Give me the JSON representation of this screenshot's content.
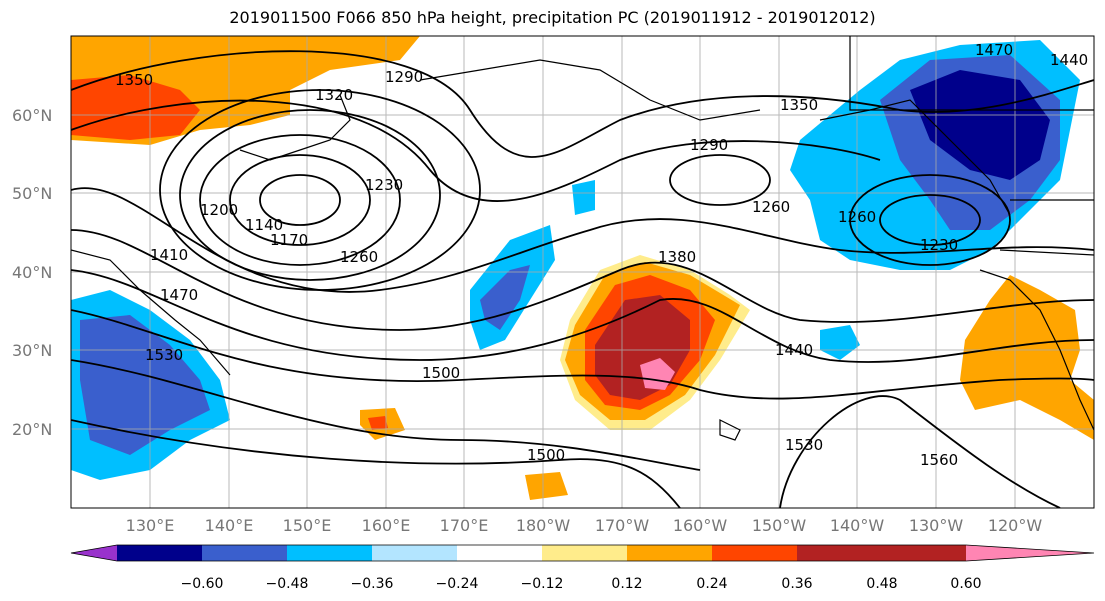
{
  "title": "2019011500 F066 850 hPa height, precipitation PC (2019011912 - 2019012012)",
  "map": {
    "lat_labels": [
      "60°N",
      "50°N",
      "40°N",
      "30°N",
      "20°N"
    ],
    "lon_labels": [
      "130°E",
      "140°E",
      "150°E",
      "160°E",
      "170°E",
      "180°W",
      "170°W",
      "160°W",
      "150°W",
      "140°W",
      "130°W",
      "120°W"
    ],
    "contour_labels": [
      "1350",
      "1320",
      "1290",
      "1290",
      "1350",
      "1470",
      "1440",
      "1200",
      "1140",
      "1170",
      "1230",
      "1260",
      "1260",
      "1260",
      "1230",
      "1410",
      "1470",
      "1530",
      "1380",
      "1440",
      "1500",
      "1500",
      "1530",
      "1560"
    ]
  },
  "colorbar": {
    "ticks": [
      "−0.60",
      "−0.48",
      "−0.36",
      "−0.24",
      "−0.12",
      "0.12",
      "0.24",
      "0.36",
      "0.48",
      "0.60"
    ],
    "colors": [
      "#9932cc",
      "#00008b",
      "#3a5fcd",
      "#00bfff",
      "#b3e5ff",
      "#ffffff",
      "#ffec8b",
      "#ffa500",
      "#ff4500",
      "#b22222",
      "#ff85b3"
    ]
  },
  "chart_data": {
    "type": "map",
    "fields": [
      "850 hPa height contours",
      "precipitation PC shading"
    ],
    "projection": "lat-lon",
    "lat_range": [
      10,
      70
    ],
    "lon_range": [
      120,
      250
    ],
    "contour_values": [
      1140,
      1170,
      1200,
      1230,
      1260,
      1290,
      1320,
      1350,
      1380,
      1410,
      1440,
      1470,
      1500,
      1530,
      1560
    ],
    "shading_levels": [
      -0.6,
      -0.48,
      -0.36,
      -0.24,
      -0.12,
      0.12,
      0.24,
      0.36,
      0.48,
      0.6
    ]
  }
}
